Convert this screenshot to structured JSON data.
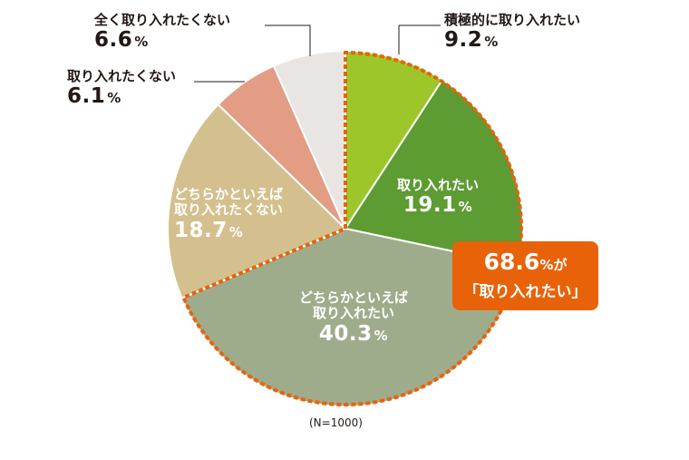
{
  "chart_data": {
    "type": "pie",
    "categories": [
      "積極的に取り入れたい",
      "取り入れたい",
      "どちらかといえば取り入れたい",
      "どちらかといえば取り入れたくない",
      "取り入れたくない",
      "全く取り入れたくない"
    ],
    "values": [
      9.2,
      19.1,
      40.3,
      18.7,
      6.1,
      6.6
    ],
    "unit": "%",
    "colors": [
      "#9dc62a",
      "#5d9b33",
      "#9fac8b",
      "#d4c08e",
      "#e39d84",
      "#e9e5e2"
    ],
    "sample_note": "(N=1000)",
    "labels": [
      {
        "line1": "積極的に取り入れたい",
        "line2": "",
        "value": "9.2"
      },
      {
        "line1": "取り入れたい",
        "line2": "",
        "value": "19.1"
      },
      {
        "line1": "どちらかといえば",
        "line2": "取り入れたい",
        "value": "40.3"
      },
      {
        "line1": "どちらかといえば",
        "line2": "取り入れたくない",
        "value": "18.7"
      },
      {
        "line1": "取り入れたくない",
        "line2": "",
        "value": "6.1"
      },
      {
        "line1": "全く取り入れたくない",
        "line2": "",
        "value": "6.6"
      }
    ],
    "pct_sign": "%",
    "highlight": {
      "value": "68.6",
      "pct_sign": "%",
      "suffix": "が",
      "text": "「取り入れたい」",
      "color": "#e8620a"
    }
  }
}
